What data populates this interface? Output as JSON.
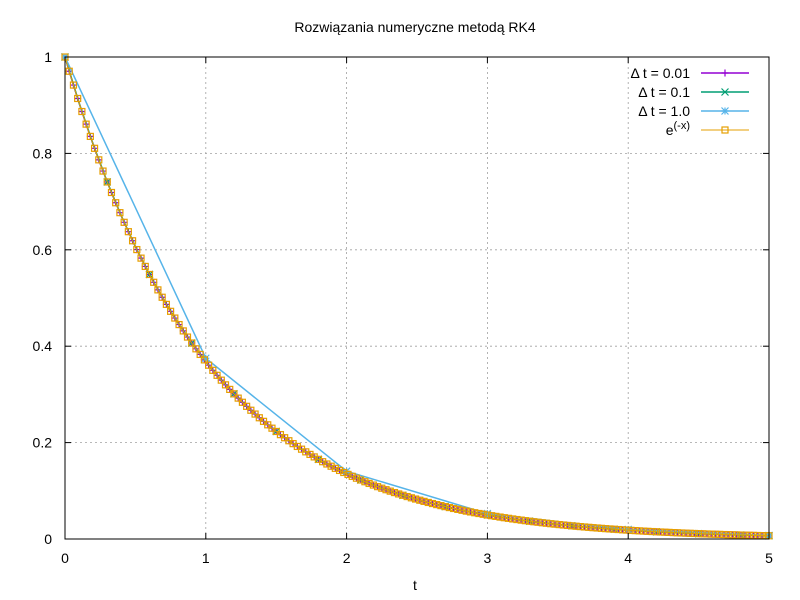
{
  "chart_data": {
    "type": "line",
    "title": "Rozwiązania numeryczne metodą RK4",
    "xlabel": "t",
    "ylabel": "",
    "xlim": [
      0,
      5
    ],
    "ylim": [
      0,
      1
    ],
    "x_ticks": [
      "0",
      "1",
      "2",
      "3",
      "4",
      "5"
    ],
    "y_ticks": [
      "0",
      "0.2",
      "0.4",
      "0.6",
      "0.8",
      "1"
    ],
    "grid": true,
    "legend_position": "top-right",
    "series": [
      {
        "name": "Δ t = 0.01",
        "color": "#9400d3",
        "marker": "plus",
        "dt": 0.01,
        "x": [
          0,
          0.5,
          1,
          1.5,
          2,
          2.5,
          3,
          3.5,
          4,
          4.5,
          5
        ],
        "y": [
          1,
          0.6065,
          0.3679,
          0.2231,
          0.1353,
          0.0821,
          0.0498,
          0.0302,
          0.0183,
          0.0111,
          0.0067
        ]
      },
      {
        "name": "Δ t = 0.1",
        "color": "#009e73",
        "marker": "cross",
        "dt": 0.1,
        "x": [
          0,
          0.5,
          1,
          1.5,
          2,
          2.5,
          3,
          3.5,
          4,
          4.5,
          5
        ],
        "y": [
          1,
          0.6065,
          0.3679,
          0.2231,
          0.1353,
          0.0821,
          0.0498,
          0.0302,
          0.0183,
          0.0111,
          0.0067
        ]
      },
      {
        "name": "Δ t = 1.0",
        "color": "#56b4e9",
        "marker": "star",
        "dt": 1.0,
        "x": [
          0,
          1,
          2,
          3,
          4,
          5
        ],
        "y": [
          1,
          0.375,
          0.1406,
          0.0527,
          0.0198,
          0.0074
        ]
      },
      {
        "name_base": "e",
        "name_sup": "(-x)",
        "color": "#e69f00",
        "marker": "square",
        "dt": 0.01,
        "x": [
          0,
          0.5,
          1,
          1.5,
          2,
          2.5,
          3,
          3.5,
          4,
          4.5,
          5
        ],
        "y": [
          1,
          0.6065,
          0.3679,
          0.2231,
          0.1353,
          0.0821,
          0.0498,
          0.0302,
          0.0183,
          0.0111,
          0.0067
        ]
      }
    ]
  }
}
